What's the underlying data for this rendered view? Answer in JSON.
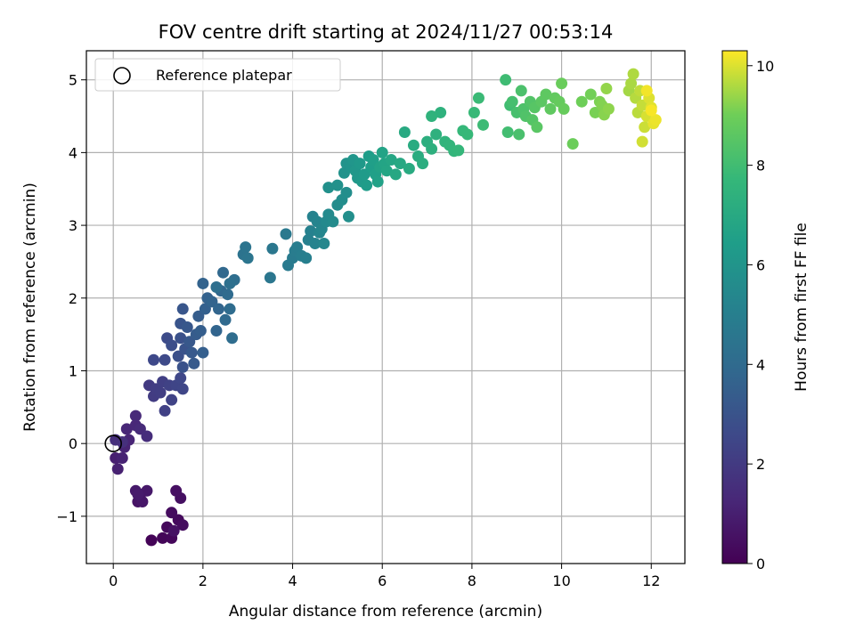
{
  "chart_data": {
    "type": "scatter",
    "title": "FOV centre drift starting at 2024/11/27 00:53:14",
    "xlabel": "Angular distance from reference (arcmin)",
    "ylabel": "Rotation from reference (arcmin)",
    "xlim": [
      -0.6,
      12.75
    ],
    "ylim": [
      -1.65,
      5.4
    ],
    "xticks": [
      0,
      2,
      4,
      6,
      8,
      10,
      12
    ],
    "yticks": [
      -1,
      0,
      1,
      2,
      3,
      4,
      5
    ],
    "xtick_labels": [
      "0",
      "2",
      "4",
      "6",
      "8",
      "10",
      "12"
    ],
    "ytick_labels": [
      "−1",
      "0",
      "1",
      "2",
      "3",
      "4",
      "5"
    ],
    "grid": true,
    "legend": {
      "placement": "top-left",
      "entries": [
        "Reference platepar"
      ]
    },
    "reference_point": {
      "x": 0,
      "y": 0,
      "label": "Reference platepar"
    },
    "colorbar": {
      "label": "Hours from first FF file",
      "colormap": "viridis",
      "range": [
        0,
        10.3
      ],
      "ticks": [
        0,
        2,
        4,
        6,
        8,
        10
      ],
      "tick_labels": [
        "0",
        "2",
        "4",
        "6",
        "8",
        "10"
      ]
    },
    "points": [
      [
        0.85,
        -1.33,
        0.1
      ],
      [
        1.1,
        -1.3,
        0.15
      ],
      [
        1.3,
        -1.3,
        0.2
      ],
      [
        1.2,
        -1.15,
        0.25
      ],
      [
        1.45,
        -1.05,
        0.3
      ],
      [
        1.3,
        -0.95,
        0.35
      ],
      [
        1.55,
        -1.12,
        0.4
      ],
      [
        1.5,
        -0.75,
        0.45
      ],
      [
        1.4,
        -0.65,
        0.5
      ],
      [
        1.35,
        -1.2,
        0.55
      ],
      [
        0.55,
        -0.8,
        0.6
      ],
      [
        0.6,
        -0.7,
        0.65
      ],
      [
        0.65,
        -0.8,
        0.7
      ],
      [
        0.75,
        -0.65,
        0.75
      ],
      [
        0.5,
        -0.65,
        0.8
      ],
      [
        0.55,
        -0.7,
        0.85
      ],
      [
        0.05,
        -0.2,
        1.0
      ],
      [
        0.1,
        -0.35,
        1.05
      ],
      [
        0.2,
        -0.2,
        1.1
      ],
      [
        0.25,
        -0.05,
        1.15
      ],
      [
        0.35,
        0.05,
        1.2
      ],
      [
        0.3,
        0.2,
        1.25
      ],
      [
        0.5,
        0.25,
        1.3
      ],
      [
        0.5,
        0.38,
        1.35
      ],
      [
        0.6,
        0.2,
        1.4
      ],
      [
        0.75,
        0.1,
        1.5
      ],
      [
        0.05,
        0.05,
        1.55
      ],
      [
        0.2,
        0.02,
        1.6
      ],
      [
        0.8,
        0.8,
        2.0
      ],
      [
        0.9,
        0.65,
        2.05
      ],
      [
        0.95,
        0.75,
        2.1
      ],
      [
        1.05,
        0.7,
        2.15
      ],
      [
        1.1,
        0.85,
        2.2
      ],
      [
        1.15,
        0.45,
        2.25
      ],
      [
        1.25,
        0.8,
        2.3
      ],
      [
        1.3,
        0.6,
        2.35
      ],
      [
        1.4,
        0.8,
        2.4
      ],
      [
        1.55,
        0.75,
        2.45
      ],
      [
        1.5,
        0.9,
        2.5
      ],
      [
        0.9,
        1.15,
        2.55
      ],
      [
        1.15,
        1.15,
        2.6
      ],
      [
        1.2,
        1.45,
        2.65
      ],
      [
        1.3,
        1.35,
        2.8
      ],
      [
        1.45,
        1.2,
        2.85
      ],
      [
        1.5,
        1.45,
        2.9
      ],
      [
        1.55,
        1.05,
        2.95
      ],
      [
        1.6,
        1.3,
        3.0
      ],
      [
        1.5,
        1.65,
        3.05
      ],
      [
        1.55,
        1.85,
        3.1
      ],
      [
        1.65,
        1.6,
        3.15
      ],
      [
        1.7,
        1.4,
        3.2
      ],
      [
        1.75,
        1.25,
        3.25
      ],
      [
        1.8,
        1.1,
        3.3
      ],
      [
        1.85,
        1.5,
        3.35
      ],
      [
        1.9,
        1.75,
        3.4
      ],
      [
        1.95,
        1.55,
        3.45
      ],
      [
        2.0,
        1.25,
        3.5
      ],
      [
        2.05,
        1.85,
        3.55
      ],
      [
        2.1,
        2.0,
        3.6
      ],
      [
        2.0,
        2.2,
        3.65
      ],
      [
        2.2,
        1.95,
        3.7
      ],
      [
        2.3,
        1.55,
        3.75
      ],
      [
        2.35,
        1.85,
        3.8
      ],
      [
        2.4,
        2.1,
        3.85
      ],
      [
        2.45,
        2.35,
        3.9
      ],
      [
        2.5,
        1.7,
        3.95
      ],
      [
        2.55,
        2.05,
        4.0
      ],
      [
        2.6,
        1.85,
        4.05
      ],
      [
        2.65,
        1.45,
        4.1
      ],
      [
        2.7,
        2.25,
        4.15
      ],
      [
        2.3,
        2.15,
        4.2
      ],
      [
        2.6,
        2.2,
        4.25
      ],
      [
        2.9,
        2.6,
        4.4
      ],
      [
        2.95,
        2.7,
        4.45
      ],
      [
        3.0,
        2.55,
        4.5
      ],
      [
        3.5,
        2.28,
        4.55
      ],
      [
        3.55,
        2.68,
        4.6
      ],
      [
        3.85,
        2.88,
        4.7
      ],
      [
        3.9,
        2.45,
        4.75
      ],
      [
        4.0,
        2.55,
        4.8
      ],
      [
        4.05,
        2.65,
        4.85
      ],
      [
        4.1,
        2.7,
        4.9
      ],
      [
        4.2,
        2.58,
        4.95
      ],
      [
        4.3,
        2.55,
        5.0
      ],
      [
        4.35,
        2.8,
        5.05
      ],
      [
        4.4,
        2.92,
        5.1
      ],
      [
        4.45,
        3.12,
        5.15
      ],
      [
        4.5,
        2.75,
        5.2
      ],
      [
        4.55,
        3.05,
        5.25
      ],
      [
        4.6,
        2.9,
        5.3
      ],
      [
        4.65,
        2.95,
        5.35
      ],
      [
        4.7,
        2.75,
        5.4
      ],
      [
        4.75,
        3.05,
        5.45
      ],
      [
        4.8,
        3.15,
        5.5
      ],
      [
        4.9,
        3.05,
        5.55
      ],
      [
        5.0,
        3.28,
        5.6
      ],
      [
        5.1,
        3.35,
        5.65
      ],
      [
        5.2,
        3.45,
        5.7
      ],
      [
        5.25,
        3.12,
        5.75
      ],
      [
        4.8,
        3.52,
        5.8
      ],
      [
        5.0,
        3.55,
        5.85
      ],
      [
        5.15,
        3.72,
        5.9
      ],
      [
        5.2,
        3.85,
        5.95
      ],
      [
        5.3,
        3.8,
        6.0
      ],
      [
        5.35,
        3.9,
        6.05
      ],
      [
        5.4,
        3.75,
        6.1
      ],
      [
        5.45,
        3.65,
        6.15
      ],
      [
        5.5,
        3.85,
        6.2
      ],
      [
        5.55,
        3.6,
        6.25
      ],
      [
        5.6,
        3.7,
        6.3
      ],
      [
        5.65,
        3.55,
        6.35
      ],
      [
        5.7,
        3.95,
        6.4
      ],
      [
        5.75,
        3.8,
        6.45
      ],
      [
        5.8,
        3.9,
        6.5
      ],
      [
        5.85,
        3.7,
        6.55
      ],
      [
        5.9,
        3.6,
        6.6
      ],
      [
        5.95,
        3.8,
        6.65
      ],
      [
        6.0,
        4.0,
        6.7
      ],
      [
        6.05,
        3.85,
        6.75
      ],
      [
        6.1,
        3.75,
        6.8
      ],
      [
        6.2,
        3.9,
        6.85
      ],
      [
        6.3,
        3.7,
        6.9
      ],
      [
        6.4,
        3.85,
        6.95
      ],
      [
        6.5,
        4.28,
        7.0
      ],
      [
        6.6,
        3.78,
        7.05
      ],
      [
        6.7,
        4.1,
        7.1
      ],
      [
        6.8,
        3.95,
        7.15
      ],
      [
        6.9,
        3.85,
        7.2
      ],
      [
        7.0,
        4.15,
        7.25
      ],
      [
        7.1,
        4.05,
        7.3
      ],
      [
        7.2,
        4.25,
        7.35
      ],
      [
        7.3,
        4.55,
        7.4
      ],
      [
        7.1,
        4.5,
        7.45
      ],
      [
        7.4,
        4.15,
        7.5
      ],
      [
        7.5,
        4.1,
        7.55
      ],
      [
        7.6,
        4.02,
        7.6
      ],
      [
        7.7,
        4.03,
        7.65
      ],
      [
        7.8,
        4.3,
        7.7
      ],
      [
        7.9,
        4.25,
        7.75
      ],
      [
        8.05,
        4.55,
        7.8
      ],
      [
        8.15,
        4.75,
        7.85
      ],
      [
        8.25,
        4.38,
        7.9
      ],
      [
        8.75,
        5.0,
        7.95
      ],
      [
        8.85,
        4.65,
        8.0
      ],
      [
        8.8,
        4.28,
        8.05
      ],
      [
        8.9,
        4.7,
        8.1
      ],
      [
        9.0,
        4.55,
        8.15
      ],
      [
        9.05,
        4.25,
        8.2
      ],
      [
        9.1,
        4.85,
        8.25
      ],
      [
        9.15,
        4.6,
        8.3
      ],
      [
        9.2,
        4.5,
        8.35
      ],
      [
        9.3,
        4.7,
        8.4
      ],
      [
        9.35,
        4.45,
        8.45
      ],
      [
        9.4,
        4.62,
        8.5
      ],
      [
        9.45,
        4.35,
        8.55
      ],
      [
        9.55,
        4.7,
        8.6
      ],
      [
        9.65,
        4.8,
        8.65
      ],
      [
        9.75,
        4.6,
        8.7
      ],
      [
        9.85,
        4.75,
        8.75
      ],
      [
        9.95,
        4.7,
        8.8
      ],
      [
        10.05,
        4.6,
        8.85
      ],
      [
        10.0,
        4.95,
        8.9
      ],
      [
        10.25,
        4.12,
        8.95
      ],
      [
        10.45,
        4.7,
        9.0
      ],
      [
        10.65,
        4.8,
        9.05
      ],
      [
        10.75,
        4.55,
        9.1
      ],
      [
        10.85,
        4.7,
        9.15
      ],
      [
        10.9,
        4.65,
        9.2
      ],
      [
        10.95,
        4.52,
        9.25
      ],
      [
        11.05,
        4.6,
        9.3
      ],
      [
        11.0,
        4.88,
        9.35
      ],
      [
        11.5,
        4.85,
        9.5
      ],
      [
        11.55,
        4.95,
        9.55
      ],
      [
        11.6,
        5.08,
        9.6
      ],
      [
        11.65,
        4.75,
        9.65
      ],
      [
        11.7,
        4.55,
        9.7
      ],
      [
        11.75,
        4.85,
        9.75
      ],
      [
        11.8,
        4.65,
        9.8
      ],
      [
        11.85,
        4.35,
        9.85
      ],
      [
        11.8,
        4.15,
        9.9
      ],
      [
        11.9,
        4.5,
        9.95
      ],
      [
        11.95,
        4.75,
        10.0
      ],
      [
        12.0,
        4.62,
        10.05
      ],
      [
        12.05,
        4.4,
        10.1
      ],
      [
        12.1,
        4.45,
        10.15
      ],
      [
        11.9,
        4.85,
        10.2
      ],
      [
        12.0,
        4.58,
        10.25
      ]
    ]
  }
}
